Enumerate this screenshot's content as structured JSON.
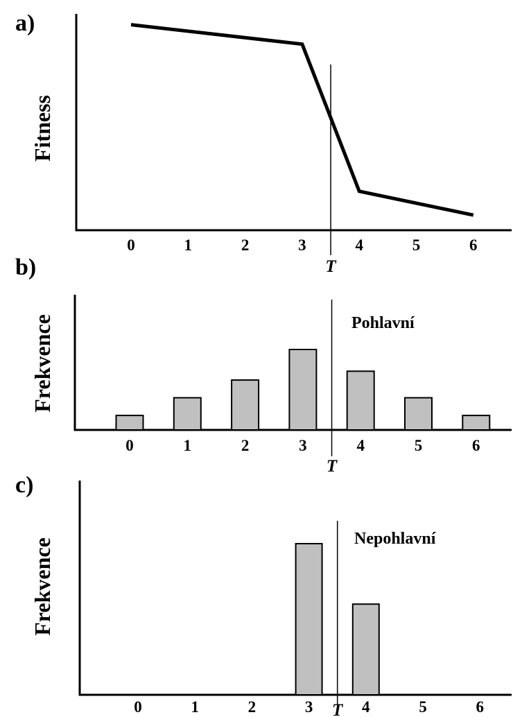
{
  "chart_data": [
    {
      "type": "line",
      "panel": "a)",
      "ylabel": "Fitness",
      "threshold_label": "T",
      "threshold_x": 3.5,
      "x_ticks": [
        "0",
        "1",
        "2",
        "3",
        "4",
        "5",
        "6"
      ],
      "x": [
        0,
        3,
        4,
        6
      ],
      "y": [
        0.95,
        0.86,
        0.18,
        0.07
      ]
    },
    {
      "type": "bar",
      "panel": "b)",
      "ylabel": "Frekvence",
      "annotation": "Pohlavní",
      "threshold_label": "T",
      "threshold_x": 3.5,
      "categories": [
        "0",
        "1",
        "2",
        "3",
        "4",
        "5",
        "6"
      ],
      "values": [
        0.18,
        0.4,
        0.62,
        1.0,
        0.73,
        0.4,
        0.18
      ]
    },
    {
      "type": "bar",
      "panel": "c)",
      "ylabel": "Frekvence",
      "annotation": "Nepohlavní",
      "threshold_label": "T",
      "threshold_x": 3.5,
      "categories": [
        "0",
        "1",
        "2",
        "3",
        "4",
        "5",
        "6"
      ],
      "values": [
        0,
        0,
        0,
        1.0,
        0.6,
        0,
        0
      ]
    }
  ]
}
